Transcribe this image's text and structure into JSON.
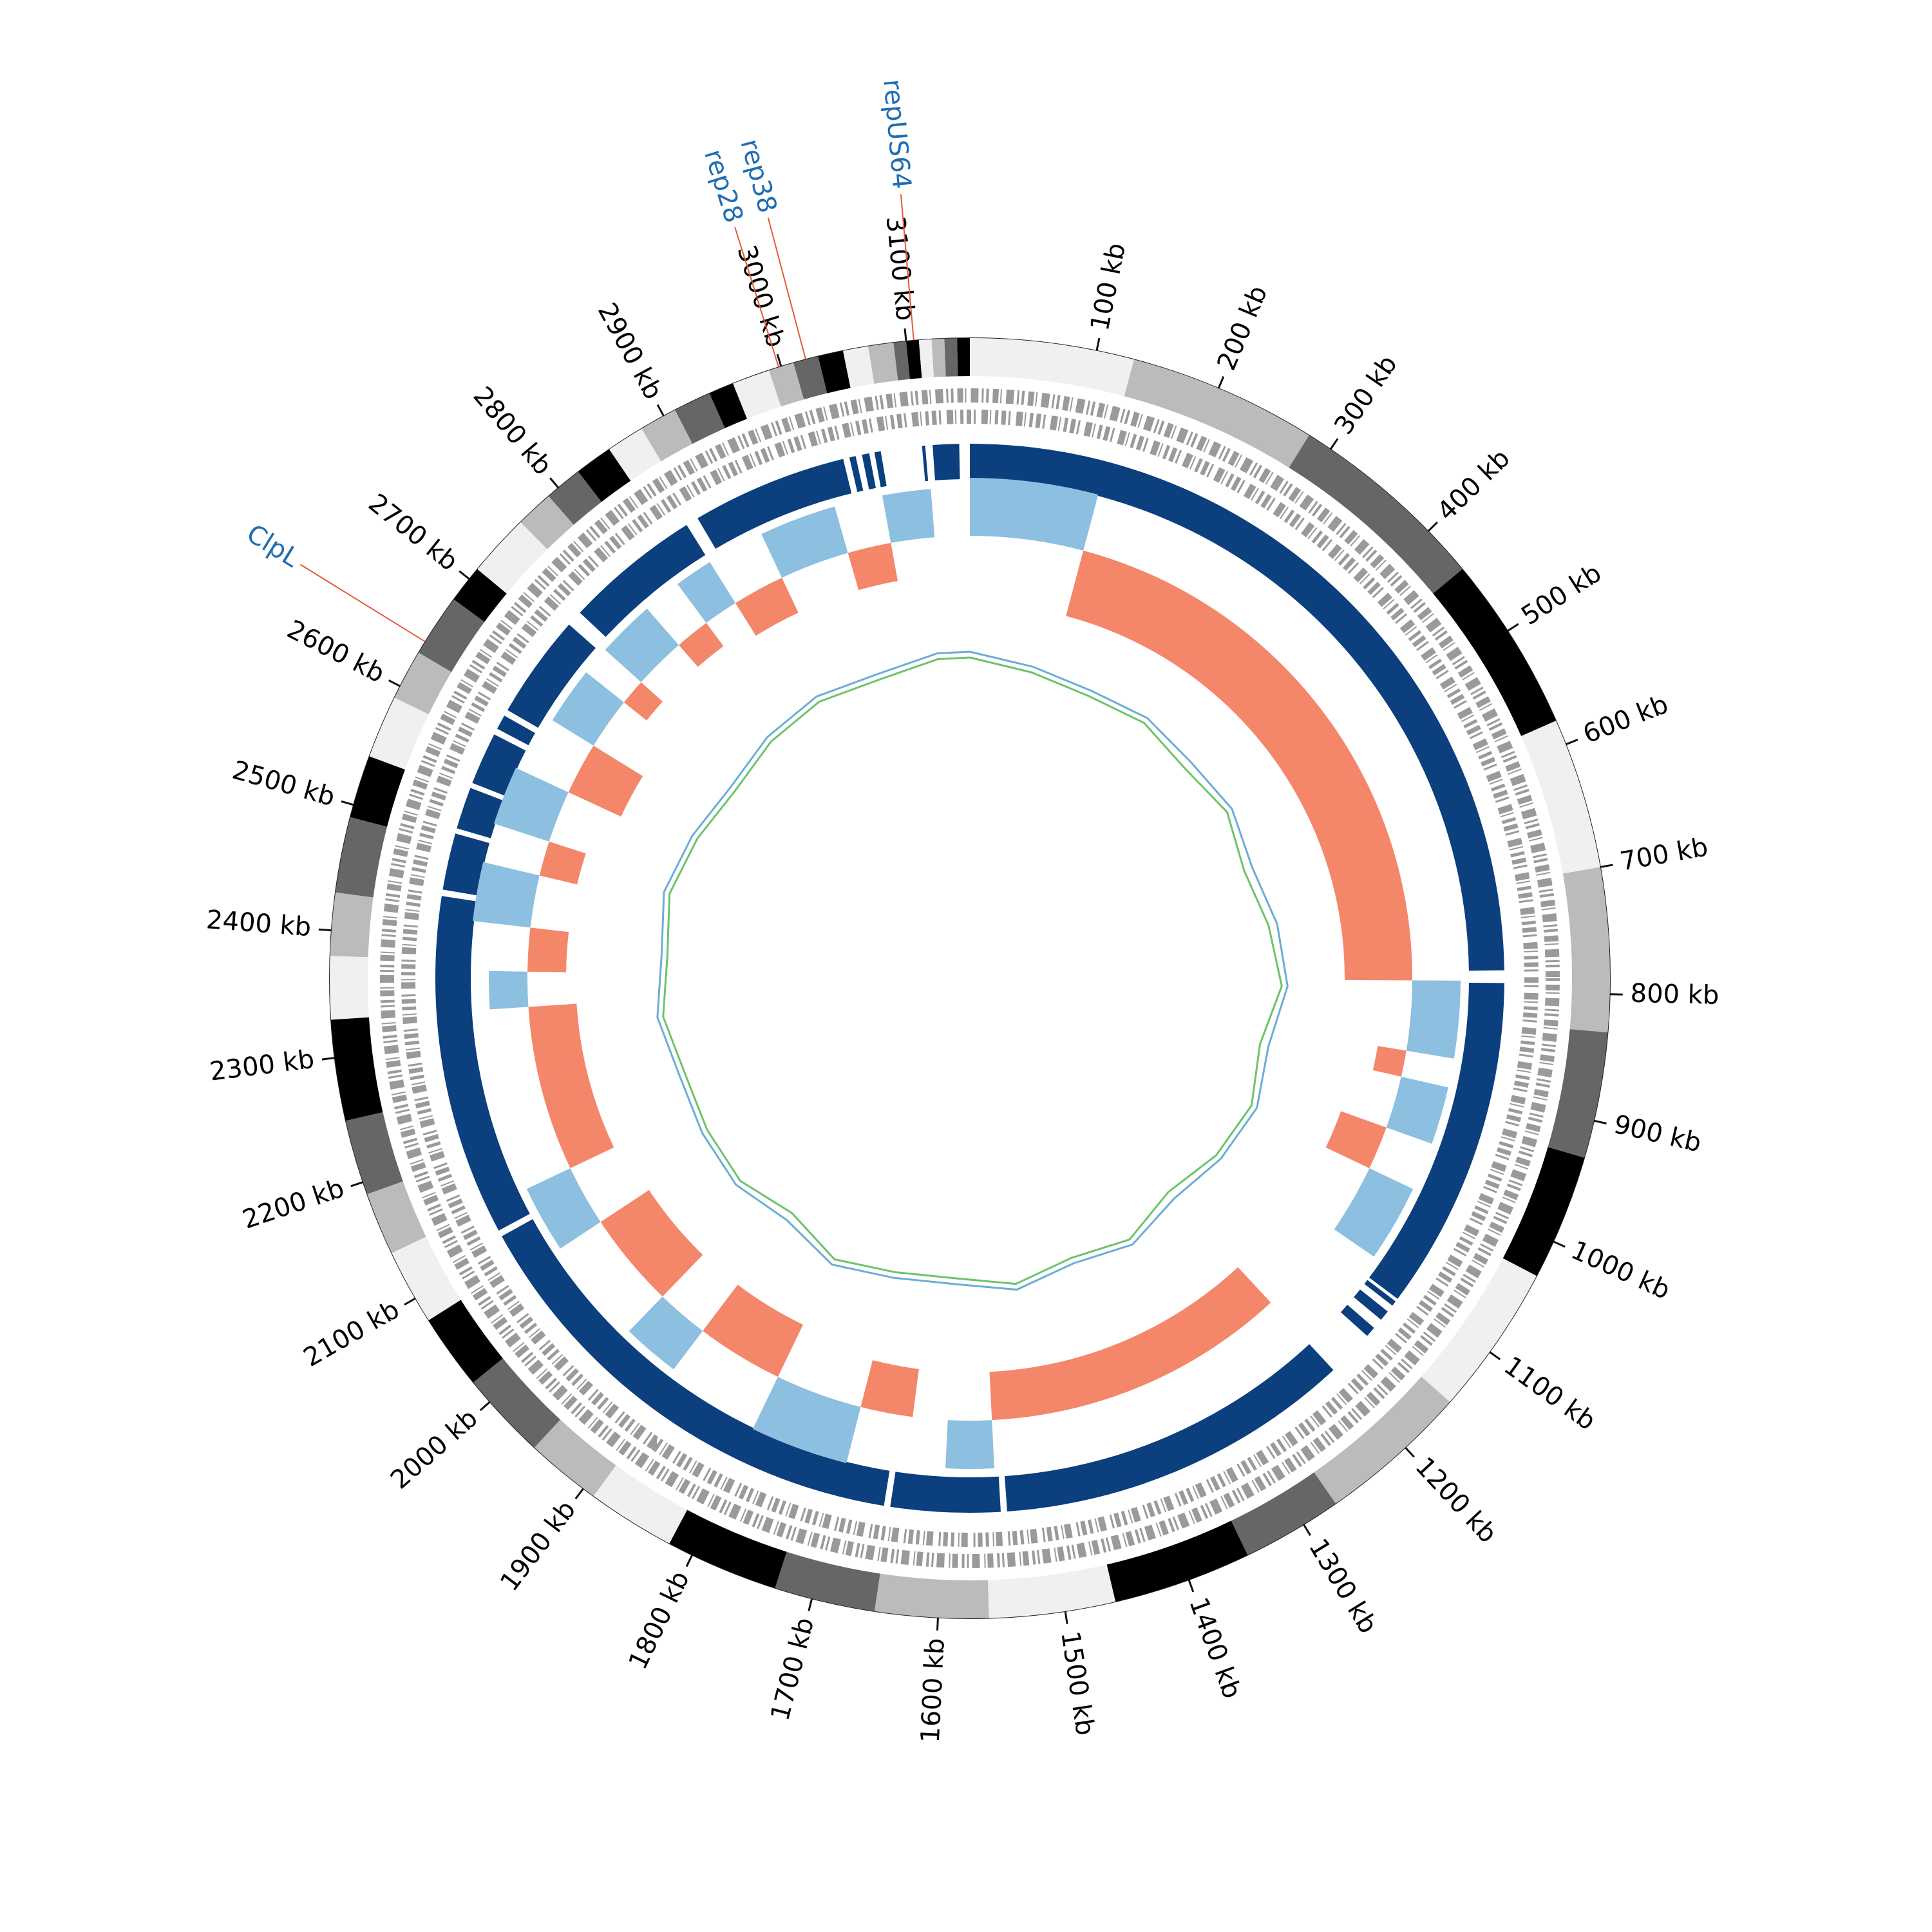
{
  "chart_data": {
    "type": "circular-genome",
    "xlim": [
      0,
      3150
    ],
    "xticks": [
      {
        "value": 100,
        "label": "100 kb"
      },
      {
        "value": 200,
        "label": "200 kb"
      },
      {
        "value": 300,
        "label": "300 kb"
      },
      {
        "value": 400,
        "label": "400 kb"
      },
      {
        "value": 500,
        "label": "500 kb"
      },
      {
        "value": 600,
        "label": "600 kb"
      },
      {
        "value": 700,
        "label": "700 kb"
      },
      {
        "value": 800,
        "label": "800 kb"
      },
      {
        "value": 900,
        "label": "900 kb"
      },
      {
        "value": 1000,
        "label": "1000 kb"
      },
      {
        "value": 1100,
        "label": "1100 kb"
      },
      {
        "value": 1200,
        "label": "1200 kb"
      },
      {
        "value": 1300,
        "label": "1300 kb"
      },
      {
        "value": 1400,
        "label": "1400 kb"
      },
      {
        "value": 1500,
        "label": "1500 kb"
      },
      {
        "value": 1600,
        "label": "1600 kb"
      },
      {
        "value": 1700,
        "label": "1700 kb"
      },
      {
        "value": 1800,
        "label": "1800 kb"
      },
      {
        "value": 1900,
        "label": "1900 kb"
      },
      {
        "value": 2000,
        "label": "2000 kb"
      },
      {
        "value": 2100,
        "label": "2100 kb"
      },
      {
        "value": 2200,
        "label": "2200 kb"
      },
      {
        "value": 2300,
        "label": "2300 kb"
      },
      {
        "value": 2400,
        "label": "2400 kb"
      },
      {
        "value": 2500,
        "label": "2500 kb"
      },
      {
        "value": 2600,
        "label": "2600 kb"
      },
      {
        "value": 2700,
        "label": "2700 kb"
      },
      {
        "value": 2800,
        "label": "2800 kb"
      },
      {
        "value": 2900,
        "label": "2900 kb"
      },
      {
        "value": 3000,
        "label": "3000 kb"
      },
      {
        "value": 3100,
        "label": "3100 kb"
      }
    ],
    "contigs": {
      "boundaries": [
        0,
        130,
        280,
        440,
        580,
        700,
        830,
        930,
        1030,
        1150,
        1270,
        1350,
        1460,
        1560,
        1650,
        1730,
        1820,
        1890,
        1950,
        2020,
        2080,
        2140,
        2190,
        2250,
        2330,
        2380,
        2430,
        2490,
        2540,
        2590,
        2630,
        2680,
        2710,
        2760,
        2790,
        2820,
        2850,
        2880,
        2910,
        2940,
        2960,
        2990,
        3010,
        3030,
        3050,
        3070,
        3090,
        3100,
        3110,
        3120,
        3130,
        3140,
        3150
      ],
      "colors": [
        "#f0f0f0",
        "#bbbbbb",
        "#666666",
        "#000000"
      ]
    },
    "blocks": {
      "color": "#0b3f7e",
      "segments": [
        [
          0,
          780
        ],
        [
          792,
          1110
        ],
        [
          1125,
          1135
        ],
        [
          1145,
          1155
        ],
        [
          1200,
          1540
        ],
        [
          1546,
          1650
        ],
        [
          1656,
          2110
        ],
        [
          1113,
          1118
        ],
        [
          2116,
          2440
        ],
        [
          2446,
          2500
        ],
        [
          2505,
          2545
        ],
        [
          2550,
          2600
        ],
        [
          2606,
          2620
        ],
        [
          2626,
          2725
        ],
        [
          2740,
          2870
        ],
        [
          2882,
          3030
        ],
        [
          3036,
          3042
        ],
        [
          3048,
          3055
        ],
        [
          3060,
          3066
        ],
        [
          3105,
          3108
        ],
        [
          3115,
          3140
        ]
      ]
    },
    "gc_skew": {
      "positive_color": "#8cbfe0",
      "negative_color": "#f4866a",
      "segments": [
        {
          "start": 0,
          "end": 130,
          "value": 0.06
        },
        {
          "start": 130,
          "end": 790,
          "value": -0.07
        },
        {
          "start": 790,
          "end": 870,
          "value": 0.05
        },
        {
          "start": 870,
          "end": 900,
          "value": -0.03
        },
        {
          "start": 900,
          "end": 960,
          "value": 0.05
        },
        {
          "start": 960,
          "end": 1010,
          "value": -0.05
        },
        {
          "start": 1010,
          "end": 1090,
          "value": 0.05
        },
        {
          "start": 1200,
          "end": 1550,
          "value": -0.05
        },
        {
          "start": 1550,
          "end": 1600,
          "value": 0.05
        },
        {
          "start": 1640,
          "end": 1700,
          "value": -0.05
        },
        {
          "start": 1700,
          "end": 1800,
          "value": 0.06
        },
        {
          "start": 1800,
          "end": 1900,
          "value": -0.06
        },
        {
          "start": 1900,
          "end": 1960,
          "value": 0.05
        },
        {
          "start": 1960,
          "end": 2070,
          "value": -0.06
        },
        {
          "start": 2070,
          "end": 2140,
          "value": 0.05
        },
        {
          "start": 2140,
          "end": 2250,
          "value": -0.05
        },
        {
          "start": 2250,
          "end": 2330,
          "value": -0.05
        },
        {
          "start": 2330,
          "end": 2370,
          "value": 0.04
        },
        {
          "start": 2370,
          "end": 2420,
          "value": -0.04
        },
        {
          "start": 2420,
          "end": 2480,
          "value": 0.06
        },
        {
          "start": 2480,
          "end": 2520,
          "value": -0.04
        },
        {
          "start": 2520,
          "end": 2580,
          "value": 0.06
        },
        {
          "start": 2580,
          "end": 2640,
          "value": -0.06
        },
        {
          "start": 2640,
          "end": 2700,
          "value": 0.05
        },
        {
          "start": 2700,
          "end": 2730,
          "value": -0.03
        },
        {
          "start": 2730,
          "end": 2790,
          "value": 0.05
        },
        {
          "start": 2790,
          "end": 2830,
          "value": -0.03
        },
        {
          "start": 2830,
          "end": 2870,
          "value": 0.05
        },
        {
          "start": 2870,
          "end": 2930,
          "value": -0.04
        },
        {
          "start": 2930,
          "end": 3010,
          "value": 0.05
        },
        {
          "start": 3010,
          "end": 3060,
          "value": -0.04
        },
        {
          "start": 3060,
          "end": 3110,
          "value": 0.05
        }
      ]
    },
    "gc_content": {
      "x": [
        0,
        100,
        200,
        300,
        400,
        500,
        600,
        700,
        800,
        900,
        1000,
        1100,
        1200,
        1300,
        1400,
        1500,
        1600,
        1700,
        1800,
        1900,
        2000,
        2100,
        2200,
        2300,
        2400,
        2500,
        2600,
        2700,
        2800,
        2900,
        3000,
        3100
      ],
      "series": [
        {
          "color": "#6aaed6",
          "values": [
            0.6,
            0.3,
            0.1,
            0.2,
            0.0,
            0.1,
            -0.2,
            0.1,
            0.3,
            -0.1,
            0.2,
            0.0,
            -0.3,
            0.1,
            -0.2,
            0.2,
            -0.1,
            0.0,
            0.3,
            -0.2,
            0.1,
            0.0,
            -0.1,
            0.2,
            0.0,
            0.3,
            0.1,
            -0.1,
            0.2,
            0.4,
            0.3,
            0.6
          ]
        },
        {
          "color": "#6cc46a",
          "values": [
            0.4,
            0.1,
            -0.1,
            0.0,
            -0.3,
            -0.1,
            -0.5,
            -0.2,
            0.1,
            -0.4,
            0.0,
            -0.2,
            -0.6,
            -0.1,
            -0.4,
            0.0,
            -0.3,
            -0.2,
            0.1,
            -0.5,
            -0.1,
            -0.2,
            -0.3,
            0.0,
            -0.2,
            0.1,
            -0.1,
            -0.3,
            0.0,
            0.2,
            0.1,
            0.4
          ]
        }
      ]
    },
    "annotation_color": "#1f6db3",
    "annotation_line_color": "#e8573a",
    "annotations": [
      {
        "label": "repUS64",
        "position": 3106
      },
      {
        "label": "rep38",
        "position": 3020
      },
      {
        "label": "rep28",
        "position": 2998
      },
      {
        "label": "ClpL",
        "position": 2640
      }
    ]
  }
}
